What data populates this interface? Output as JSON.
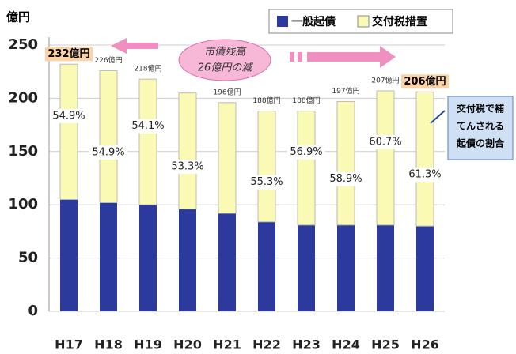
{
  "chart_data": {
    "type": "stacked_bar",
    "y_label": "億円",
    "categories": [
      "H17",
      "H18",
      "H19",
      "H20",
      "H21",
      "H22",
      "H23",
      "H24",
      "H25",
      "H26"
    ],
    "series": [
      {
        "name": "一般起債",
        "color": "#2b3a9c",
        "values": [
          105,
          102,
          100,
          96,
          92,
          84,
          81,
          81,
          81,
          80
        ]
      },
      {
        "name": "交付税措置",
        "color": "#fafab4",
        "values": [
          127,
          124,
          118,
          109,
          104,
          104,
          107,
          116,
          126,
          126
        ]
      }
    ],
    "total_labels": [
      "232億円",
      "226億円",
      "218億円",
      null,
      "196億円",
      "188億円",
      "188億円",
      "197億円",
      "207億円",
      "206億円"
    ],
    "share_labels": [
      "54.9%",
      "54.9%",
      "54.1%",
      "53.3%",
      null,
      "55.3%",
      "56.9%",
      "58.9%",
      "60.7%",
      "61.3%"
    ],
    "ylim": [
      0,
      250
    ],
    "yticks": [
      0,
      50,
      100,
      150,
      200,
      250
    ],
    "grid": true,
    "annotation": [
      "市債残高",
      "26億円の減"
    ],
    "callout": [
      "交付税で補",
      "てんされる",
      "起債の割合"
    ]
  }
}
